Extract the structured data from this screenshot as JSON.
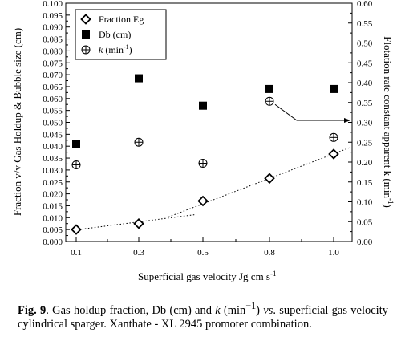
{
  "chart_data": {
    "type": "scatter",
    "categories": [
      "0.1",
      "0.3",
      "0.5",
      "0.8",
      "1.0"
    ],
    "xlabel": "Superficial  gas velocity Jg cm s",
    "xlabel_sup": "-1",
    "ylabel_left": "Fraction v/v Gas Holdup  & Bubble size (cm)",
    "ylabel_right": "Flotation rate constant apparent k (min",
    "ylabel_right_sup": "-1",
    "ylabel_right_close": ")",
    "ylim_left": [
      0,
      0.1
    ],
    "ylim_right": [
      0,
      0.6
    ],
    "yticks_left": [
      "0.000",
      "0.005",
      "0.010",
      "0.015",
      "0.020",
      "0.025",
      "0.030",
      "0.035",
      "0.040",
      "0.045",
      "0.050",
      "0.055",
      "0.060",
      "0.065",
      "0.070",
      "0.075",
      "0.080",
      "0.085",
      "0.090",
      "0.095",
      "0.100"
    ],
    "yticks_right": [
      "0.00",
      "0.05",
      "0.10",
      "0.15",
      "0.20",
      "0.25",
      "0.30",
      "0.35",
      "0.40",
      "0.45",
      "0.50",
      "0.55",
      "0.60"
    ],
    "grid": false,
    "legend_position": "top-left",
    "series": [
      {
        "name": "Fraction Eg",
        "marker": "open-diamond",
        "axis": "left",
        "values": [
          0.005,
          0.0075,
          0.017,
          0.0265,
          0.0367
        ]
      },
      {
        "name": "Db (cm)",
        "marker": "filled-square",
        "axis": "left",
        "values": [
          0.041,
          0.0685,
          0.057,
          0.064,
          0.064
        ]
      },
      {
        "name": "k (min",
        "name_sup": "-1",
        "name_close": ")",
        "marker": "circle-plus",
        "axis": "right",
        "values": [
          0.193,
          0.25,
          0.197,
          0.353,
          0.262
        ]
      }
    ],
    "trend_lines": [
      {
        "series": "Fraction Eg",
        "segment": "low",
        "style": "dotted"
      },
      {
        "series": "Fraction Eg",
        "segment": "high",
        "style": "dotted"
      }
    ],
    "annotation": {
      "type": "arrow",
      "from_series": "k",
      "from_index": 3,
      "points_to": "right-axis"
    }
  },
  "caption": {
    "label": "Fig. 9",
    "text1": ". Gas holdup fraction, Db (cm) and ",
    "k": "k",
    "text2": " (min",
    "sup": "−1",
    "text3": ") ",
    "vs": "vs",
    "text4": ". superficial gas velocity cylindrical sparger. Xanthate - XL 2945 promoter combination."
  }
}
